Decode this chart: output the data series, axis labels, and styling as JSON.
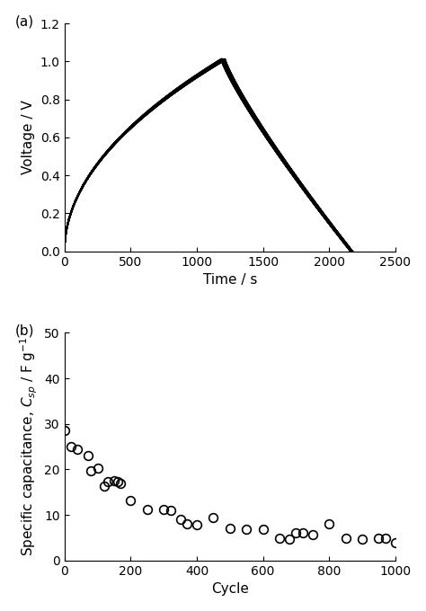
{
  "panel_a": {
    "label": "(a)",
    "xlabel": "Time / s",
    "ylabel": "Voltage / V",
    "xlim": [
      0,
      2500
    ],
    "ylim": [
      0,
      1.2
    ],
    "xticks": [
      0,
      500,
      1000,
      1500,
      2000,
      2500
    ],
    "yticks": [
      0.0,
      0.2,
      0.4,
      0.6,
      0.8,
      1.0,
      1.2
    ],
    "charge_peak_time": 1200,
    "charge_peak_voltage": 1.01,
    "discharge_end_time": 2170,
    "line_width": 1.2,
    "line_color": "#000000",
    "num_cycles": 80,
    "time_spread": 15,
    "voltage_spread": 0.004
  },
  "panel_b": {
    "label": "(b)",
    "xlabel": "Cycle",
    "ylabel": "Specific capacitance, $C_{sp}$ / F g$^{-1}$",
    "xlim": [
      0,
      1000
    ],
    "ylim": [
      0,
      50
    ],
    "xticks": [
      0,
      200,
      400,
      600,
      800,
      1000
    ],
    "yticks": [
      0,
      10,
      20,
      30,
      40,
      50
    ],
    "cycles": [
      1,
      20,
      40,
      70,
      80,
      100,
      120,
      130,
      150,
      160,
      170,
      200,
      250,
      300,
      320,
      350,
      370,
      400,
      450,
      500,
      550,
      600,
      650,
      680,
      700,
      720,
      750,
      800,
      850,
      900,
      950,
      970,
      1000
    ],
    "capacitance": [
      28.5,
      25.0,
      24.5,
      23.0,
      19.7,
      20.3,
      16.3,
      17.3,
      17.5,
      17.3,
      17.0,
      13.2,
      11.3,
      11.2,
      11.0,
      9.0,
      8.0,
      7.8,
      9.5,
      7.0,
      6.8,
      6.8,
      5.0,
      4.8,
      6.0,
      6.0,
      5.8,
      8.0,
      5.0,
      4.8,
      5.0,
      5.0,
      4.0
    ],
    "marker": "o",
    "marker_size": 7,
    "marker_color": "none",
    "marker_edge_color": "#000000",
    "marker_edge_width": 1.2
  },
  "background_color": "#ffffff",
  "label_fontsize": 11,
  "tick_fontsize": 10,
  "axis_label_fontsize": 11
}
